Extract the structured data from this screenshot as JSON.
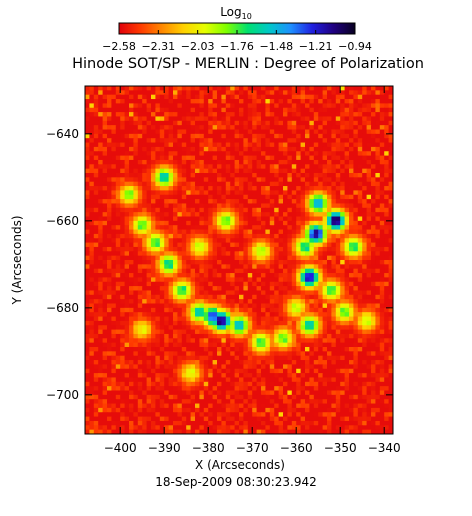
{
  "colorbar": {
    "label": "Log",
    "label_subscript": "10",
    "tick_labels": [
      "-2.58",
      "-2.31",
      "-2.03",
      "-1.76",
      "-1.48",
      "-1.21",
      "-0.94"
    ],
    "colors": [
      "#e0000c",
      "#ff3a00",
      "#ff8800",
      "#ffd000",
      "#e6ff00",
      "#7fff00",
      "#00e070",
      "#00c8c8",
      "#1e90ff",
      "#2020e0",
      "#200080",
      "#080020"
    ]
  },
  "chart_data": {
    "type": "heatmap",
    "title": "Hinode SOT/SP - MERLIN : Degree of Polarization",
    "xlabel": "X (Arcseconds)",
    "ylabel": "Y (Arcseconds)",
    "xlim": [
      -408,
      -338
    ],
    "ylim": [
      -709,
      -629
    ],
    "xticks": [
      -400,
      -390,
      -380,
      -370,
      -360,
      -350,
      -340
    ],
    "yticks": [
      -640,
      -660,
      -680,
      -700
    ],
    "value_range": [
      -2.58,
      -0.94
    ],
    "background_value": -2.55,
    "features": [
      {
        "x": -355.5,
        "y": -663,
        "value": -1.05
      },
      {
        "x": -351,
        "y": -660,
        "value": -0.98
      },
      {
        "x": -357,
        "y": -673,
        "value": -1.1
      },
      {
        "x": -355,
        "y": -656,
        "value": -1.4
      },
      {
        "x": -358,
        "y": -666,
        "value": -1.6
      },
      {
        "x": -352,
        "y": -676,
        "value": -1.7
      },
      {
        "x": -357,
        "y": -684,
        "value": -1.55
      },
      {
        "x": -349,
        "y": -681,
        "value": -1.75
      },
      {
        "x": -360,
        "y": -680,
        "value": -1.9
      },
      {
        "x": -347,
        "y": -666,
        "value": -1.65
      },
      {
        "x": -377,
        "y": -683,
        "value": -1.0
      },
      {
        "x": -379,
        "y": -682,
        "value": -1.25
      },
      {
        "x": -373,
        "y": -684,
        "value": -1.5
      },
      {
        "x": -382,
        "y": -681,
        "value": -1.55
      },
      {
        "x": -368,
        "y": -688,
        "value": -1.7
      },
      {
        "x": -386,
        "y": -676,
        "value": -1.65
      },
      {
        "x": -389,
        "y": -670,
        "value": -1.6
      },
      {
        "x": -392,
        "y": -665,
        "value": -1.7
      },
      {
        "x": -395,
        "y": -661,
        "value": -1.75
      },
      {
        "x": -390,
        "y": -650,
        "value": -1.55
      },
      {
        "x": -398,
        "y": -654,
        "value": -1.8
      },
      {
        "x": -376,
        "y": -660,
        "value": -1.75
      },
      {
        "x": -382,
        "y": -666,
        "value": -1.9
      },
      {
        "x": -368,
        "y": -667,
        "value": -1.85
      },
      {
        "x": -363,
        "y": -687,
        "value": -1.75
      },
      {
        "x": -344,
        "y": -683,
        "value": -1.9
      },
      {
        "x": -384,
        "y": -695,
        "value": -1.95
      },
      {
        "x": -395,
        "y": -685,
        "value": -2.0
      }
    ]
  },
  "footer": {
    "timestamp": "18-Sep-2009 08:30:23.942"
  }
}
